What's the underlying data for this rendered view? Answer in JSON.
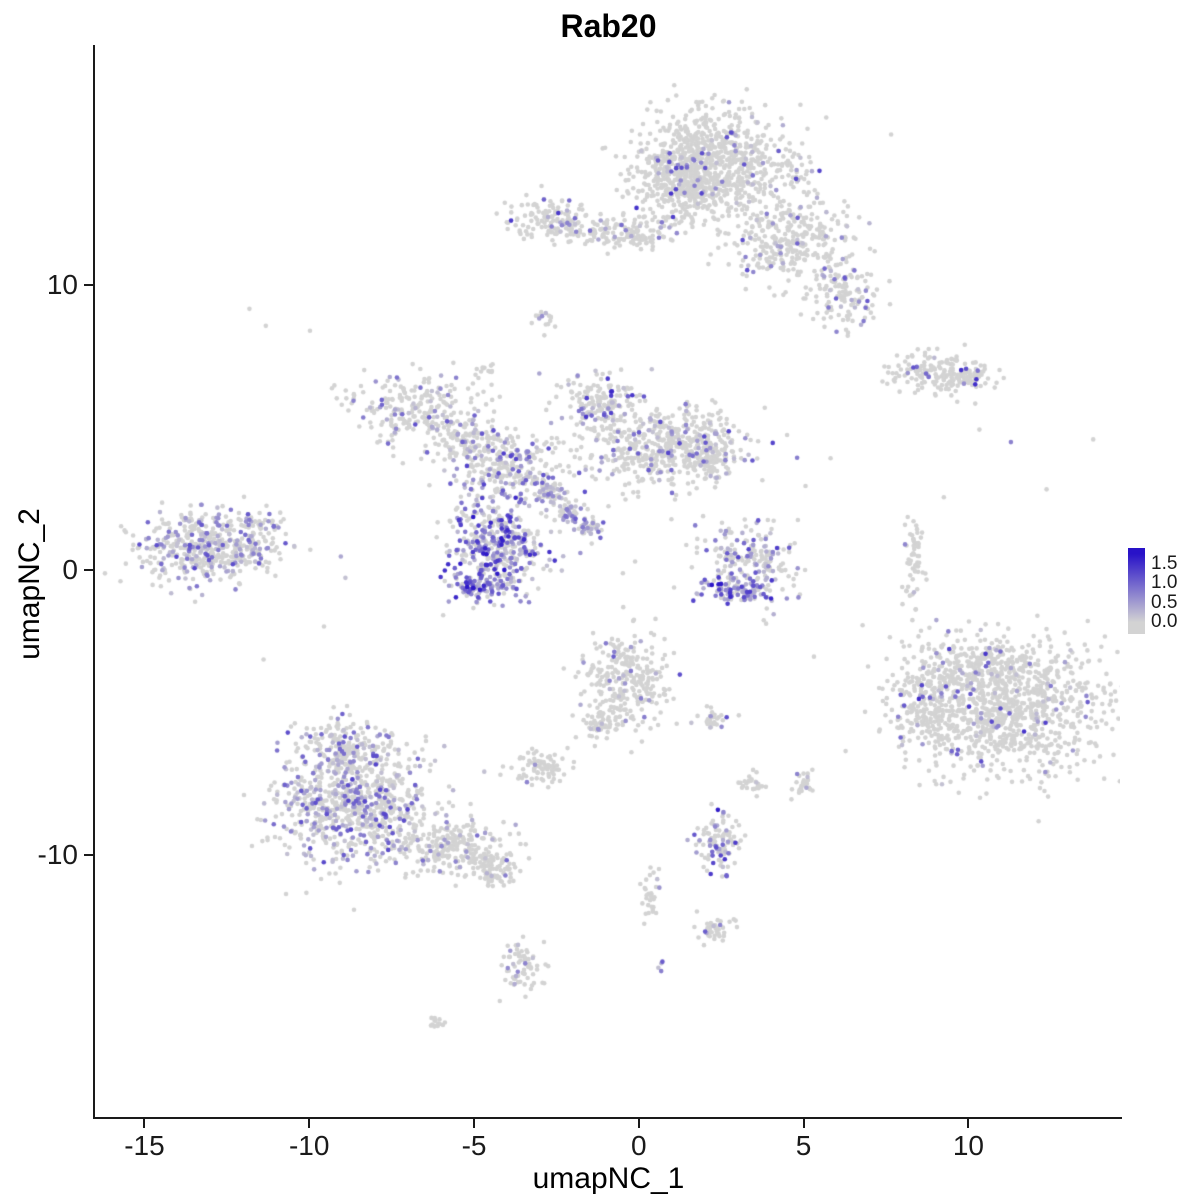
{
  "title": "Rab20",
  "axes": {
    "x": {
      "label": "umapNC_1",
      "ticks": [
        -15,
        -10,
        -5,
        0,
        5,
        10
      ]
    },
    "y": {
      "label": "umapNC_2",
      "ticks": [
        10,
        0,
        -10
      ]
    }
  },
  "legend": {
    "tick_labels": [
      "1.5",
      "1.0",
      "0.5",
      "0.0"
    ],
    "tick_values": [
      1.5,
      1.0,
      0.5,
      0.0
    ],
    "bar_domain": [
      -0.3,
      1.9
    ],
    "low_color": "#d3d3d3",
    "high_color": "#2812c8"
  },
  "chart_data": {
    "type": "scatter",
    "title": "Rab20",
    "xlabel": "umapNC_1",
    "ylabel": "umapNC_2",
    "xlim": [
      -16.5,
      14.6
    ],
    "ylim": [
      -19.2,
      18.4
    ],
    "grid": false,
    "legend_position": "right",
    "point_radius": 2.3,
    "seed": 42,
    "color_scale": {
      "low": "#d3d3d3",
      "high": "#2812c8",
      "domain": [
        0,
        1.75
      ]
    },
    "clusters": [
      {
        "name": "top-main",
        "cx": 2.3,
        "cy": 14.2,
        "sx": 1.25,
        "sy": 1.0,
        "n": 850,
        "f": 0.07,
        "m": 1.3
      },
      {
        "name": "top-main-left",
        "cx": 1.2,
        "cy": 13.6,
        "sx": 0.55,
        "sy": 0.8,
        "n": 250,
        "f": 0.1,
        "m": 1.5
      },
      {
        "name": "top-right-arm",
        "cx": 4.6,
        "cy": 11.6,
        "sx": 0.9,
        "sy": 0.8,
        "n": 320,
        "f": 0.1,
        "m": 1.2
      },
      {
        "name": "top-right-tail",
        "cx": 6.2,
        "cy": 9.6,
        "sx": 0.5,
        "sy": 0.6,
        "n": 120,
        "f": 0.12,
        "m": 1.2
      },
      {
        "name": "top-left-small",
        "cx": -2.7,
        "cy": 12.2,
        "sx": 0.65,
        "sy": 0.4,
        "n": 130,
        "f": 0.12,
        "m": 1.4
      },
      {
        "name": "top-left-strip",
        "cx": -1.1,
        "cy": 11.9,
        "sx": 0.8,
        "sy": 0.25,
        "n": 90,
        "f": 0.08,
        "m": 1.0
      },
      {
        "name": "top-strip-2",
        "cx": 0.2,
        "cy": 11.6,
        "sx": 0.4,
        "sy": 0.25,
        "n": 50,
        "f": 0.1,
        "m": 1.0
      },
      {
        "name": "tiny-upper-a",
        "cx": -2.9,
        "cy": 8.8,
        "sx": 0.18,
        "sy": 0.18,
        "n": 15,
        "f": 0.15,
        "m": 0.8
      },
      {
        "name": "tiny-upper-b",
        "cx": -4.7,
        "cy": 7.0,
        "sx": 0.15,
        "sy": 0.15,
        "n": 12,
        "f": 0.1,
        "m": 0.8
      },
      {
        "name": "mid-left",
        "cx": -6.6,
        "cy": 5.6,
        "sx": 1.0,
        "sy": 0.6,
        "n": 260,
        "f": 0.15,
        "m": 1.2
      },
      {
        "name": "mid-left-tail",
        "cx": -5.2,
        "cy": 4.6,
        "sx": 0.5,
        "sy": 0.4,
        "n": 90,
        "f": 0.2,
        "m": 1.2
      },
      {
        "name": "center-top-lobe",
        "cx": -1.2,
        "cy": 5.8,
        "sx": 0.6,
        "sy": 0.5,
        "n": 160,
        "f": 0.25,
        "m": 1.6
      },
      {
        "name": "center-main",
        "cx": 0.8,
        "cy": 4.3,
        "sx": 1.2,
        "sy": 0.75,
        "n": 480,
        "f": 0.12,
        "m": 1.3
      },
      {
        "name": "center-main-right",
        "cx": 2.2,
        "cy": 4.0,
        "sx": 0.5,
        "sy": 0.5,
        "n": 120,
        "f": 0.15,
        "m": 1.3
      },
      {
        "name": "center-left-arm",
        "cx": -4.0,
        "cy": 3.6,
        "sx": 0.85,
        "sy": 0.6,
        "n": 260,
        "f": 0.3,
        "m": 1.4
      },
      {
        "name": "center-knot",
        "cx": -4.2,
        "cy": 0.9,
        "sx": 0.75,
        "sy": 0.85,
        "n": 420,
        "f": 0.55,
        "m": 1.7
      },
      {
        "name": "center-knot-bottom",
        "cx": -4.9,
        "cy": -0.6,
        "sx": 0.55,
        "sy": 0.25,
        "n": 90,
        "f": 0.8,
        "m": 1.7
      },
      {
        "name": "diag-streak-1",
        "cx": -2.7,
        "cy": 2.7,
        "sx": 0.22,
        "sy": 0.22,
        "n": 50,
        "f": 0.5,
        "m": 1.1
      },
      {
        "name": "diag-streak-2",
        "cx": -2.1,
        "cy": 2.1,
        "sx": 0.22,
        "sy": 0.22,
        "n": 50,
        "f": 0.5,
        "m": 1.1
      },
      {
        "name": "diag-streak-3",
        "cx": -1.5,
        "cy": 1.5,
        "sx": 0.2,
        "sy": 0.2,
        "n": 40,
        "f": 0.5,
        "m": 1.1
      },
      {
        "name": "left-island",
        "cx": -13.2,
        "cy": 0.8,
        "sx": 1.0,
        "sy": 0.65,
        "n": 430,
        "f": 0.35,
        "m": 1.3
      },
      {
        "name": "left-island-edge",
        "cx": -11.6,
        "cy": 1.0,
        "sx": 0.4,
        "sy": 0.5,
        "n": 80,
        "f": 0.2,
        "m": 1.0
      },
      {
        "name": "right-of-center",
        "cx": 3.3,
        "cy": 0.3,
        "sx": 0.75,
        "sy": 0.65,
        "n": 210,
        "f": 0.3,
        "m": 1.4
      },
      {
        "name": "right-of-center-bottom",
        "cx": 3.0,
        "cy": -0.75,
        "sx": 0.55,
        "sy": 0.18,
        "n": 90,
        "f": 0.85,
        "m": 1.7
      },
      {
        "name": "thin-strip-right",
        "cx": 8.35,
        "cy": 0.1,
        "sx": 0.14,
        "sy": 0.85,
        "n": 60,
        "f": 0.05,
        "m": 0.8
      },
      {
        "name": "right-arm",
        "cx": 8.9,
        "cy": 6.9,
        "sx": 0.8,
        "sy": 0.35,
        "n": 160,
        "f": 0.06,
        "m": 1.2
      },
      {
        "name": "right-arm-tip",
        "cx": 10.0,
        "cy": 6.8,
        "sx": 0.3,
        "sy": 0.25,
        "n": 50,
        "f": 0.15,
        "m": 1.6
      },
      {
        "name": "big-right",
        "cx": 11.2,
        "cy": -4.8,
        "sx": 1.5,
        "sy": 1.2,
        "n": 1000,
        "f": 0.06,
        "m": 1.5
      },
      {
        "name": "big-right-west",
        "cx": 8.8,
        "cy": -4.6,
        "sx": 0.5,
        "sy": 1.1,
        "n": 200,
        "f": 0.08,
        "m": 1.2
      },
      {
        "name": "big-right-north",
        "cx": 10.3,
        "cy": -3.2,
        "sx": 0.7,
        "sy": 0.4,
        "n": 120,
        "f": 0.1,
        "m": 1.3
      },
      {
        "name": "bottom-left",
        "cx": -8.7,
        "cy": -8.2,
        "sx": 1.2,
        "sy": 1.0,
        "n": 780,
        "f": 0.3,
        "m": 1.3
      },
      {
        "name": "bottom-left-top",
        "cx": -8.9,
        "cy": -6.2,
        "sx": 0.7,
        "sy": 0.5,
        "n": 180,
        "f": 0.25,
        "m": 1.2
      },
      {
        "name": "bottom-left-tail",
        "cx": -5.8,
        "cy": -9.7,
        "sx": 0.9,
        "sy": 0.5,
        "n": 230,
        "f": 0.1,
        "m": 1.0
      },
      {
        "name": "bottom-left-tip",
        "cx": -4.4,
        "cy": -10.4,
        "sx": 0.45,
        "sy": 0.3,
        "n": 90,
        "f": 0.08,
        "m": 1.0
      },
      {
        "name": "bottom-center",
        "cx": -0.3,
        "cy": -3.9,
        "sx": 0.65,
        "sy": 0.85,
        "n": 280,
        "f": 0.08,
        "m": 1.2
      },
      {
        "name": "bottom-center-tail",
        "cx": -1.1,
        "cy": -5.3,
        "sx": 0.3,
        "sy": 0.3,
        "n": 50,
        "f": 0.05,
        "m": 1.0
      },
      {
        "name": "small-oval",
        "cx": -2.9,
        "cy": -6.9,
        "sx": 0.4,
        "sy": 0.3,
        "n": 80,
        "f": 0.06,
        "m": 1.0
      },
      {
        "name": "small-south",
        "cx": 2.4,
        "cy": -9.6,
        "sx": 0.4,
        "sy": 0.5,
        "n": 110,
        "f": 0.25,
        "m": 1.4
      },
      {
        "name": "blue-dot",
        "cx": 2.55,
        "cy": -8.45,
        "sx": 0.08,
        "sy": 0.08,
        "n": 3,
        "f": 1.0,
        "m": 1.7
      },
      {
        "name": "tiny-pair-a",
        "cx": 3.4,
        "cy": -7.4,
        "sx": 0.2,
        "sy": 0.2,
        "n": 25,
        "f": 0.2,
        "m": 1.0
      },
      {
        "name": "tiny-pair-b",
        "cx": 5.0,
        "cy": -7.6,
        "sx": 0.18,
        "sy": 0.25,
        "n": 25,
        "f": 0.1,
        "m": 1.0
      },
      {
        "name": "tiny-mid-pair",
        "cx": 2.3,
        "cy": -5.2,
        "sx": 0.25,
        "sy": 0.2,
        "n": 30,
        "f": 0.3,
        "m": 1.2
      },
      {
        "name": "tiny-strip-south",
        "cx": 0.3,
        "cy": -11.4,
        "sx": 0.15,
        "sy": 0.45,
        "n": 30,
        "f": 0.05,
        "m": 0.8
      },
      {
        "name": "tiny-south-pair",
        "cx": 2.3,
        "cy": -12.6,
        "sx": 0.25,
        "sy": 0.2,
        "n": 40,
        "f": 0.12,
        "m": 1.2
      },
      {
        "name": "small-deep-south",
        "cx": -3.6,
        "cy": -13.9,
        "sx": 0.3,
        "sy": 0.45,
        "n": 70,
        "f": 0.15,
        "m": 0.9
      },
      {
        "name": "tiny-sw",
        "cx": -6.1,
        "cy": -15.8,
        "sx": 0.15,
        "sy": 0.15,
        "n": 14,
        "f": 0.2,
        "m": 1.0
      },
      {
        "name": "blue-dot-south",
        "cx": 0.7,
        "cy": -13.9,
        "sx": 0.1,
        "sy": 0.1,
        "n": 4,
        "f": 0.8,
        "m": 1.5
      },
      {
        "name": "sparse-noise",
        "cx": 0.0,
        "cy": 1.5,
        "sx": 5.5,
        "sy": 4.5,
        "n": 40,
        "f": 0.1,
        "m": 1.0
      }
    ]
  }
}
